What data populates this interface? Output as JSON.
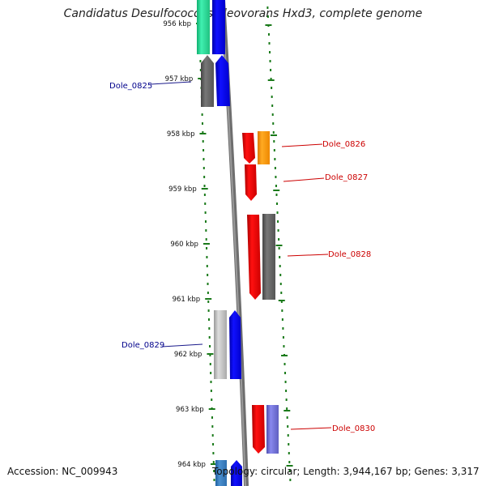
{
  "title": "Candidatus Desulfococcus oleovorans Hxd3, complete genome",
  "footer": {
    "accession": "Accession: NC_009943",
    "topology": "Topology: circular; Length: 3,944,167 bp; Genes: 3,317"
  },
  "ticks": [
    {
      "label": "956 kbp",
      "kbp": 956
    },
    {
      "label": "957 kbp",
      "kbp": 957
    },
    {
      "label": "958 kbp",
      "kbp": 958
    },
    {
      "label": "959 kbp",
      "kbp": 959
    },
    {
      "label": "960 kbp",
      "kbp": 960
    },
    {
      "label": "961 kbp",
      "kbp": 961
    },
    {
      "label": "962 kbp",
      "kbp": 962
    },
    {
      "label": "963 kbp",
      "kbp": 963
    },
    {
      "label": "964 kbp",
      "kbp": 964
    }
  ],
  "gene_labels": [
    {
      "name": "Dole_0825",
      "strand": "left",
      "color": "#00008b"
    },
    {
      "name": "Dole_0826",
      "strand": "right",
      "color": "#cc0000"
    },
    {
      "name": "Dole_0827",
      "strand": "right",
      "color": "#cc0000"
    },
    {
      "name": "Dole_0828",
      "strand": "right",
      "color": "#cc0000"
    },
    {
      "name": "Dole_0829",
      "strand": "left",
      "color": "#00008b"
    },
    {
      "name": "Dole_0830",
      "strand": "right",
      "color": "#cc0000"
    }
  ],
  "colors": {
    "backbone": "#808080",
    "tick": "#1a7a1a",
    "forward_gene": "#ff0000",
    "reverse_gene": "#0000ff",
    "grey_feature": "#666666",
    "light_grey_feature": "#bbbbbb",
    "orange_feature": "#ff9900",
    "teal_feature": "#22dd99",
    "slate_feature": "#6a6acd"
  }
}
